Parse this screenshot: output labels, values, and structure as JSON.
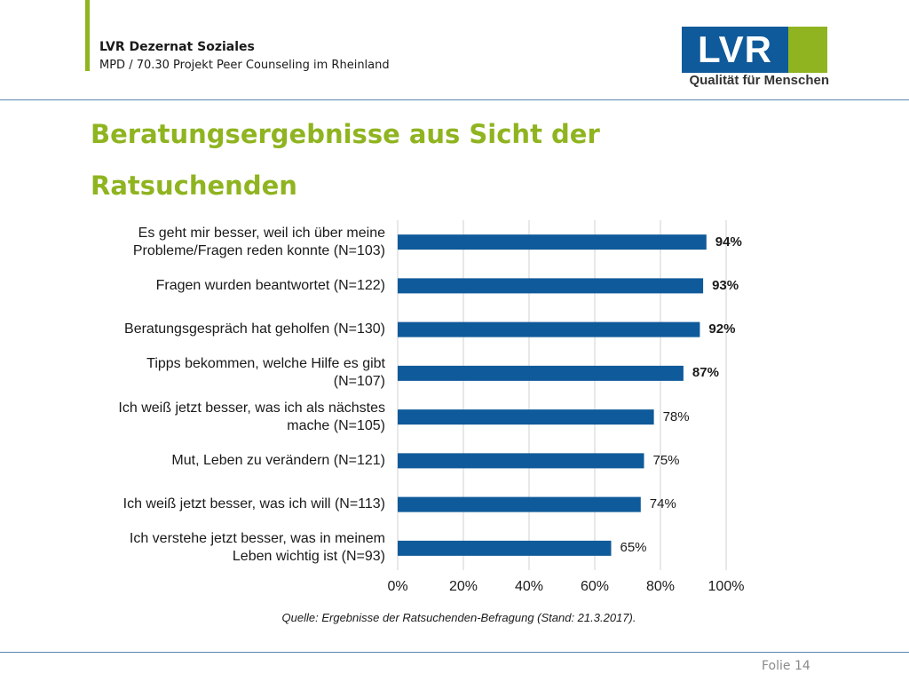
{
  "header": {
    "org": "LVR Dezernat Soziales",
    "project": "MPD / 70.30 Projekt Peer Counseling im Rheinland"
  },
  "logo": {
    "letters": "LVR",
    "tagline": "Qualität für Menschen",
    "colors": {
      "blue": "#0f5a9a",
      "green": "#8fb420"
    }
  },
  "slide": {
    "title_line1": "Beratungsergebnisse aus Sicht der",
    "title_line2": "Ratsuchenden"
  },
  "chart_data": {
    "type": "bar",
    "orientation": "horizontal",
    "categories": [
      [
        "Es geht mir besser, weil ich über meine",
        "Probleme/Fragen reden konnte (N=103)"
      ],
      [
        "Fragen wurden beantwortet (N=122)"
      ],
      [
        "Beratungsgespräch hat geholfen (N=130)"
      ],
      [
        "Tipps bekommen, welche Hilfe es gibt",
        "(N=107)"
      ],
      [
        "Ich weiß jetzt besser, was ich als nächstes",
        "mache (N=105)"
      ],
      [
        "Mut, Leben zu verändern (N=121)"
      ],
      [
        "Ich weiß jetzt besser, was ich will (N=113)"
      ],
      [
        "Ich verstehe jetzt besser, was in meinem",
        "Leben wichtig ist (N=93)"
      ]
    ],
    "values": [
      94,
      93,
      92,
      87,
      78,
      75,
      74,
      65
    ],
    "value_labels": [
      "94%",
      "93%",
      "92%",
      "87%",
      "78%",
      "75%",
      "74%",
      "65%"
    ],
    "bold_value_labels": [
      true,
      true,
      true,
      true,
      false,
      false,
      false,
      false
    ],
    "xlim": [
      0,
      100
    ],
    "xticks": [
      0,
      20,
      40,
      60,
      80,
      100
    ],
    "xtick_labels": [
      "0%",
      "20%",
      "40%",
      "60%",
      "80%",
      "100%"
    ],
    "grid": true,
    "bar_color": "#0f5a9a",
    "grid_color": "#d0d0d0",
    "source": "Quelle: Ergebnisse der Ratsuchenden-Befragung (Stand: 21.3.2017)."
  },
  "footer": {
    "slide_label": "Folie 14"
  }
}
